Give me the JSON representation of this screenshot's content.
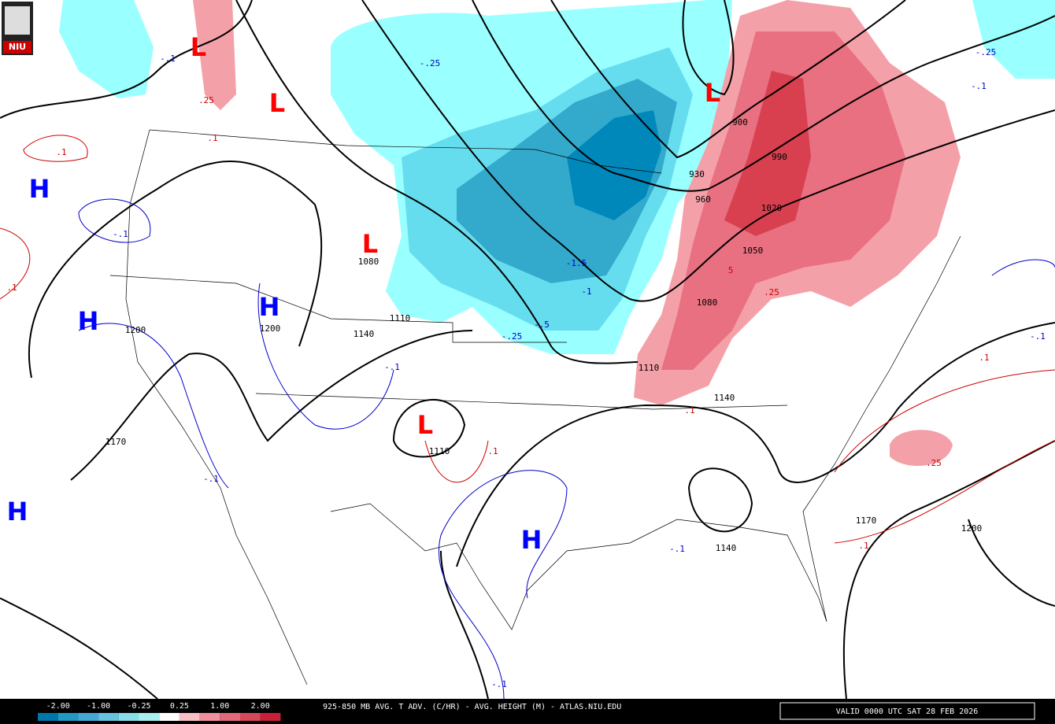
{
  "logo": "NIU",
  "centers": [
    "L",
    "L",
    "L",
    "L",
    "L",
    "H",
    "H",
    "H",
    "H",
    "H"
  ],
  "height_labels": [
    "1200",
    "1200",
    "1080",
    "1110",
    "1140",
    "1170",
    "1110",
    "1140",
    "1110",
    "1080",
    "1050",
    "1020",
    "990",
    "960",
    "930",
    "900",
    "1140",
    "1170",
    "1200"
  ],
  "advection_labels": [
    "-.25",
    "-.1",
    ".25",
    ".1",
    ".1",
    "-.1",
    ".1",
    "-1.5",
    "-1",
    "-.5",
    "-.25",
    "-.1",
    "-.1",
    ".1",
    ".1",
    "5",
    ".25",
    ".1",
    ".25",
    ".1",
    "-.25",
    "-.1",
    "-.1",
    "-.1",
    "-.1"
  ],
  "legend": {
    "labels": [
      "-2.00",
      "-1.00",
      "-0.25",
      "0.25",
      "1.00",
      "2.00"
    ]
  },
  "title": "925-850 MB AVG. T ADV. (C/HR) - AVG. HEIGHT (M) - ATLAS.NIU.EDU",
  "valid": "VALID 0000 UTC SAT 28 FEB 2026"
}
